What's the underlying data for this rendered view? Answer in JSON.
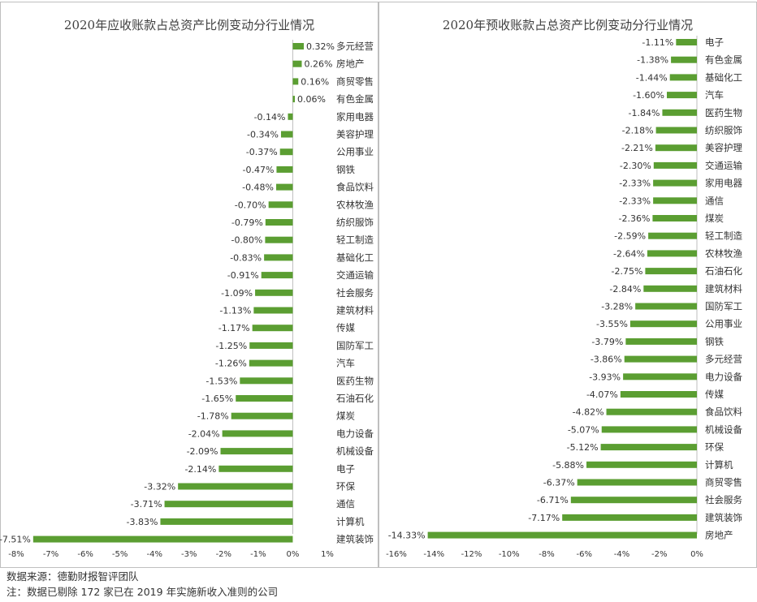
{
  "colors": {
    "bar": "#5b9e32",
    "axis": "#bfbfbf",
    "text": "#333333"
  },
  "chart_data": [
    {
      "type": "bar",
      "orientation": "horizontal",
      "title": "2020年应收账款占总资产比例变动分行业情况",
      "xlim": [
        -8,
        1
      ],
      "x_ticks": [
        -8,
        -7,
        -6,
        -5,
        -4,
        -3,
        -2,
        -1,
        0,
        1
      ],
      "tick_suffix": "%",
      "grid": false,
      "categories": [
        "多元经营",
        "房地产",
        "商贸零售",
        "有色金属",
        "家用电器",
        "美容护理",
        "公用事业",
        "钢铁",
        "食品饮料",
        "农林牧渔",
        "纺织服饰",
        "轻工制造",
        "基础化工",
        "交通运输",
        "社会服务",
        "建筑材料",
        "传媒",
        "国防军工",
        "汽车",
        "医药生物",
        "石油石化",
        "煤炭",
        "电力设备",
        "机械设备",
        "电子",
        "环保",
        "通信",
        "计算机",
        "建筑装饰"
      ],
      "values": [
        0.32,
        0.26,
        0.16,
        0.06,
        -0.14,
        -0.34,
        -0.37,
        -0.47,
        -0.48,
        -0.7,
        -0.79,
        -0.8,
        -0.83,
        -0.91,
        -1.09,
        -1.13,
        -1.17,
        -1.25,
        -1.26,
        -1.53,
        -1.65,
        -1.78,
        -2.04,
        -2.09,
        -2.14,
        -3.32,
        -3.71,
        -3.83,
        -7.51
      ]
    },
    {
      "type": "bar",
      "orientation": "horizontal",
      "title": "2020年预收账款占总资产比例变动分行业情况",
      "xlim": [
        -16,
        0
      ],
      "x_ticks": [
        -16,
        -14,
        -12,
        -10,
        -8,
        -6,
        -4,
        -2,
        0
      ],
      "tick_suffix": "%",
      "grid": false,
      "categories": [
        "电子",
        "有色金属",
        "基础化工",
        "汽车",
        "医药生物",
        "纺织服饰",
        "美容护理",
        "交通运输",
        "家用电器",
        "通信",
        "煤炭",
        "轻工制造",
        "农林牧渔",
        "石油石化",
        "建筑材料",
        "国防军工",
        "公用事业",
        "钢铁",
        "多元经营",
        "电力设备",
        "传媒",
        "食品饮料",
        "机械设备",
        "环保",
        "计算机",
        "商贸零售",
        "社会服务",
        "建筑装饰",
        "房地产"
      ],
      "values": [
        -1.11,
        -1.38,
        -1.44,
        -1.6,
        -1.84,
        -2.18,
        -2.21,
        -2.3,
        -2.33,
        -2.33,
        -2.36,
        -2.59,
        -2.64,
        -2.75,
        -2.84,
        -3.28,
        -3.55,
        -3.79,
        -3.86,
        -3.93,
        -4.07,
        -4.82,
        -5.07,
        -5.12,
        -5.88,
        -6.37,
        -6.71,
        -7.17,
        -14.33
      ]
    }
  ],
  "footer": {
    "source": "数据来源：德勤财报智评团队",
    "note": "注：数据已剔除 172 家已在 2019 年实施新收入准则的公司"
  }
}
